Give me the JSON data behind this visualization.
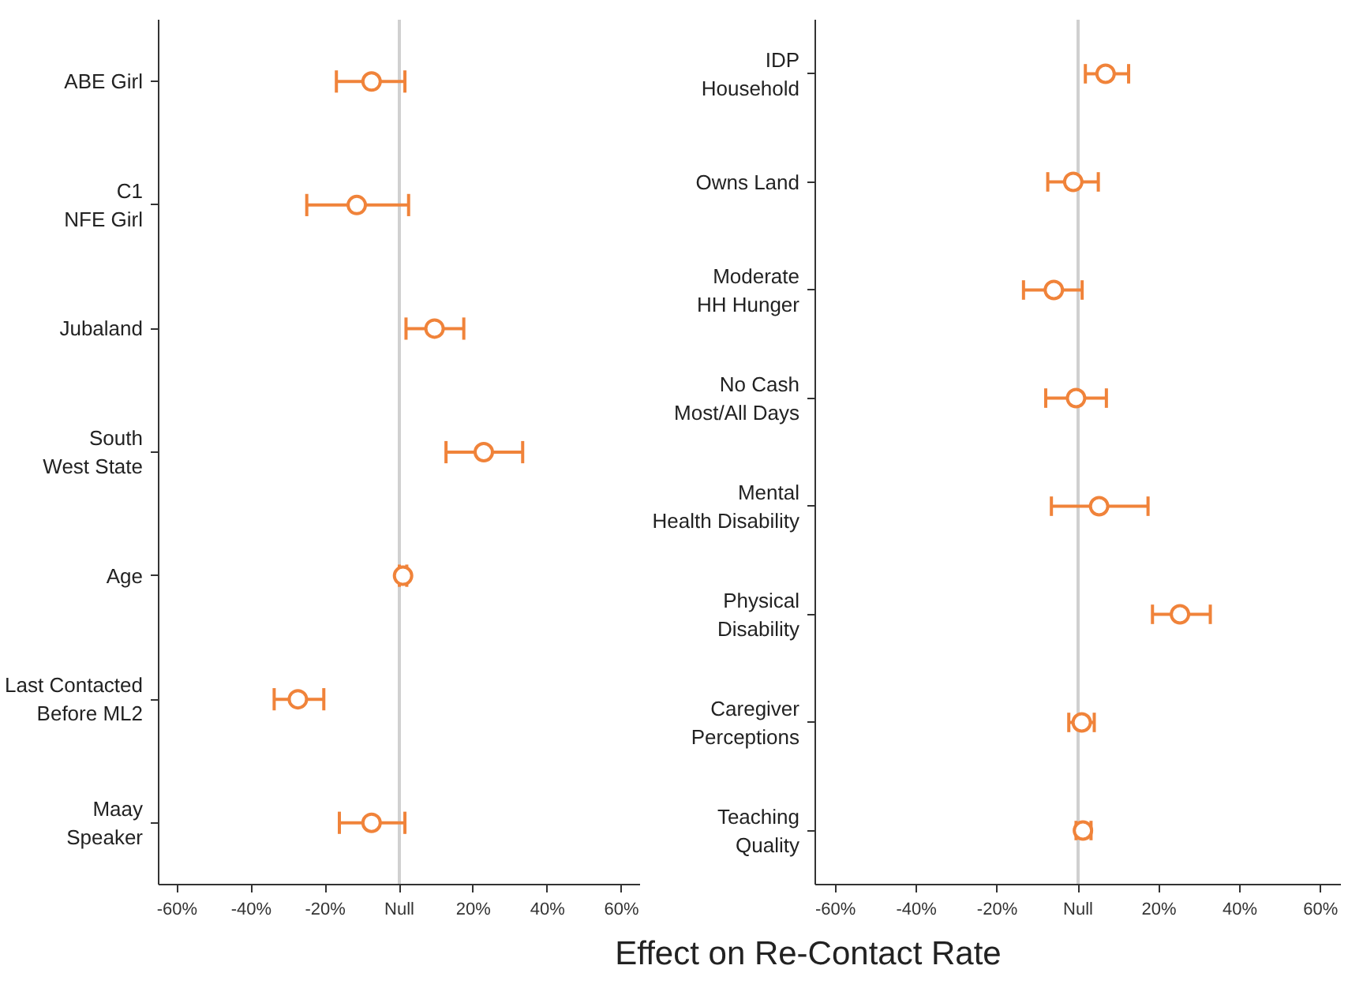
{
  "chart_data": [
    {
      "type": "scatter",
      "xlabel": "Effect on Re-Contact Rate",
      "categories": [
        "ABE Girl",
        "C1\nNFE Girl",
        "Jubaland",
        "South\nWest State",
        "Age",
        "Last Contacted\nBefore ML2",
        "Maay\nSpeaker"
      ],
      "orientation": "horizontal",
      "marker": "circle",
      "grid": false,
      "series": [
        {
          "color": "#f0833a",
          "values": [
            -7.5,
            -11.5,
            9.5,
            22.8,
            1,
            -27.4,
            -7.5
          ],
          "errors": [
            [
              -17,
              1.5
            ],
            [
              -25,
              2.5
            ],
            [
              1.8,
              17.4
            ],
            [
              12.6,
              33.3
            ],
            [
              0,
              2
            ],
            [
              -33.8,
              -20.4
            ],
            [
              -16.2,
              1.5
            ]
          ]
        }
      ],
      "xlim": [
        -65,
        65
      ],
      "xticks": [
        {
          "value": -60,
          "label": "-60%"
        },
        {
          "value": -40,
          "label": "-40%"
        },
        {
          "value": -20,
          "label": "-20%"
        },
        {
          "value": 0,
          "label": "Null"
        },
        {
          "value": 20,
          "label": "20%"
        },
        {
          "value": 40,
          "label": "40%"
        },
        {
          "value": 60,
          "label": "60%"
        }
      ],
      "ref_lines": [
        {
          "axis": "x",
          "value": 0,
          "color": "#d0d0d0"
        }
      ]
    },
    {
      "type": "scatter",
      "categories": [
        "IDP\nHousehold",
        "Owns Land",
        "Moderate\nHH Hunger",
        "No Cash\nMost/All Days",
        "Mental\nHealth Disability",
        "Physical\nDisability",
        "Caregiver\nPerceptions",
        "Teaching\nQuality"
      ],
      "orientation": "horizontal",
      "marker": "circle",
      "grid": false,
      "series": [
        {
          "color": "#f0833a",
          "values": [
            6.8,
            -1.2,
            -6,
            -0.5,
            5.2,
            25.2,
            0.9,
            1.2
          ],
          "errors": [
            [
              1.8,
              12.5
            ],
            [
              -7.5,
              5
            ],
            [
              -13.5,
              1
            ],
            [
              -8,
              7
            ],
            [
              -6.6,
              17.3
            ],
            [
              18.4,
              32.7
            ],
            [
              -2.3,
              4
            ],
            [
              -0.5,
              3.2
            ]
          ]
        }
      ],
      "xlim": [
        -65,
        65
      ],
      "xticks": [
        {
          "value": -60,
          "label": "-60%"
        },
        {
          "value": -40,
          "label": "-40%"
        },
        {
          "value": -20,
          "label": "-20%"
        },
        {
          "value": 0,
          "label": "Null"
        },
        {
          "value": 20,
          "label": "20%"
        },
        {
          "value": 40,
          "label": "40%"
        },
        {
          "value": 60,
          "label": "60%"
        }
      ],
      "ref_lines": [
        {
          "axis": "x",
          "value": 0,
          "color": "#d0d0d0"
        }
      ]
    }
  ]
}
